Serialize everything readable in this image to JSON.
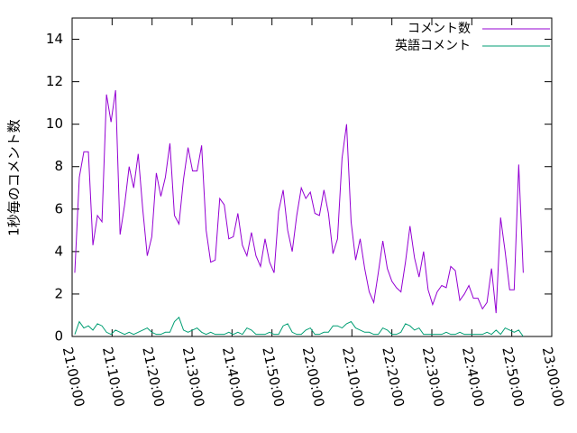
{
  "chart_data": {
    "type": "line",
    "ylabel": "1秒毎のコメント数",
    "x": [
      75640,
      75708,
      75776,
      75844,
      75912,
      75980,
      76048,
      76116,
      76184,
      76252,
      76320,
      76388,
      76456,
      76524,
      76592,
      76660,
      76728,
      76796,
      76864,
      76932,
      77000,
      77068,
      77136,
      77204,
      77272,
      77340,
      77408,
      77476,
      77544,
      77612,
      77680,
      77748,
      77816,
      77884,
      77952,
      78020,
      78088,
      78156,
      78224,
      78292,
      78360,
      78428,
      78496,
      78564,
      78632,
      78700,
      78768,
      78836,
      78904,
      78972,
      79040,
      79108,
      79176,
      79244,
      79312,
      79380,
      79448,
      79516,
      79584,
      79652,
      79720,
      79788,
      79856,
      79924,
      79992,
      80060,
      80128,
      80196,
      80264,
      80332,
      80400,
      80468,
      80536,
      80604,
      80672,
      80740,
      80808,
      80876,
      80944,
      81012,
      81080,
      81148,
      81216,
      81284,
      81352,
      81420,
      81488,
      81556,
      81624,
      81692,
      81760,
      81828,
      81896,
      81964,
      82032,
      82100,
      82168,
      82236,
      82304,
      82372
    ],
    "series": [
      {
        "name": "コメント数",
        "color": "#9400d3",
        "values": [
          3.0,
          7.5,
          8.7,
          8.7,
          4.3,
          5.7,
          5.4,
          11.4,
          10.1,
          11.6,
          4.8,
          6.2,
          8.0,
          7.0,
          8.6,
          6.0,
          3.8,
          4.7,
          7.7,
          6.6,
          7.5,
          9.1,
          5.7,
          5.3,
          7.4,
          8.9,
          7.8,
          7.8,
          9.0,
          5.0,
          3.5,
          3.6,
          6.5,
          6.2,
          4.6,
          4.7,
          5.8,
          4.3,
          3.8,
          4.9,
          3.8,
          3.3,
          4.6,
          3.5,
          3.0,
          5.9,
          6.9,
          5.0,
          4.0,
          5.7,
          7.0,
          6.5,
          6.8,
          5.8,
          5.7,
          6.9,
          5.8,
          3.9,
          4.6,
          8.4,
          10.0,
          5.4,
          3.6,
          4.6,
          3.2,
          2.1,
          1.6,
          3.0,
          4.5,
          3.2,
          2.6,
          2.3,
          2.1,
          3.5,
          5.2,
          3.7,
          2.8,
          4.0,
          2.2,
          1.5,
          2.1,
          2.4,
          2.3,
          3.3,
          3.1,
          1.7,
          2.0,
          2.4,
          1.8,
          1.8,
          1.3,
          1.6,
          3.2,
          1.1,
          5.6,
          4.0,
          2.2,
          2.2,
          8.1,
          3.0
        ]
      },
      {
        "name": "英語コメント",
        "color": "#009e73",
        "values": [
          0.1,
          0.7,
          0.4,
          0.5,
          0.3,
          0.6,
          0.5,
          0.2,
          0.1,
          0.3,
          0.2,
          0.1,
          0.2,
          0.1,
          0.2,
          0.3,
          0.4,
          0.2,
          0.1,
          0.1,
          0.2,
          0.2,
          0.7,
          0.9,
          0.3,
          0.2,
          0.3,
          0.4,
          0.2,
          0.1,
          0.2,
          0.1,
          0.1,
          0.1,
          0.2,
          0.1,
          0.2,
          0.1,
          0.4,
          0.3,
          0.1,
          0.1,
          0.1,
          0.2,
          0.1,
          0.1,
          0.5,
          0.6,
          0.2,
          0.1,
          0.1,
          0.3,
          0.4,
          0.1,
          0.1,
          0.2,
          0.2,
          0.5,
          0.5,
          0.4,
          0.6,
          0.7,
          0.4,
          0.3,
          0.2,
          0.2,
          0.1,
          0.1,
          0.4,
          0.3,
          0.1,
          0.1,
          0.2,
          0.6,
          0.5,
          0.3,
          0.4,
          0.1,
          0.1,
          0.1,
          0.1,
          0.1,
          0.2,
          0.1,
          0.1,
          0.2,
          0.1,
          0.1,
          0.1,
          0.1,
          0.1,
          0.2,
          0.1,
          0.3,
          0.1,
          0.4,
          0.3,
          0.2,
          0.3,
          0.0
        ]
      }
    ],
    "xlim": [
      75600,
      82800
    ],
    "xticks": [
      {
        "value": 75600,
        "label": "21:00:00"
      },
      {
        "value": 76200,
        "label": "21:10:00"
      },
      {
        "value": 76800,
        "label": "21:20:00"
      },
      {
        "value": 77400,
        "label": "21:30:00"
      },
      {
        "value": 78000,
        "label": "21:40:00"
      },
      {
        "value": 78600,
        "label": "21:50:00"
      },
      {
        "value": 79200,
        "label": "22:00:00"
      },
      {
        "value": 79800,
        "label": "22:10:00"
      },
      {
        "value": 80400,
        "label": "22:20:00"
      },
      {
        "value": 81000,
        "label": "22:30:00"
      },
      {
        "value": 81600,
        "label": "22:40:00"
      },
      {
        "value": 82200,
        "label": "22:50:00"
      },
      {
        "value": 82800,
        "label": "23:00:00"
      }
    ],
    "ylim": [
      0,
      15
    ],
    "yticks": [
      0,
      2,
      4,
      6,
      8,
      10,
      12,
      14
    ],
    "legend": "top-right",
    "grid": false
  }
}
